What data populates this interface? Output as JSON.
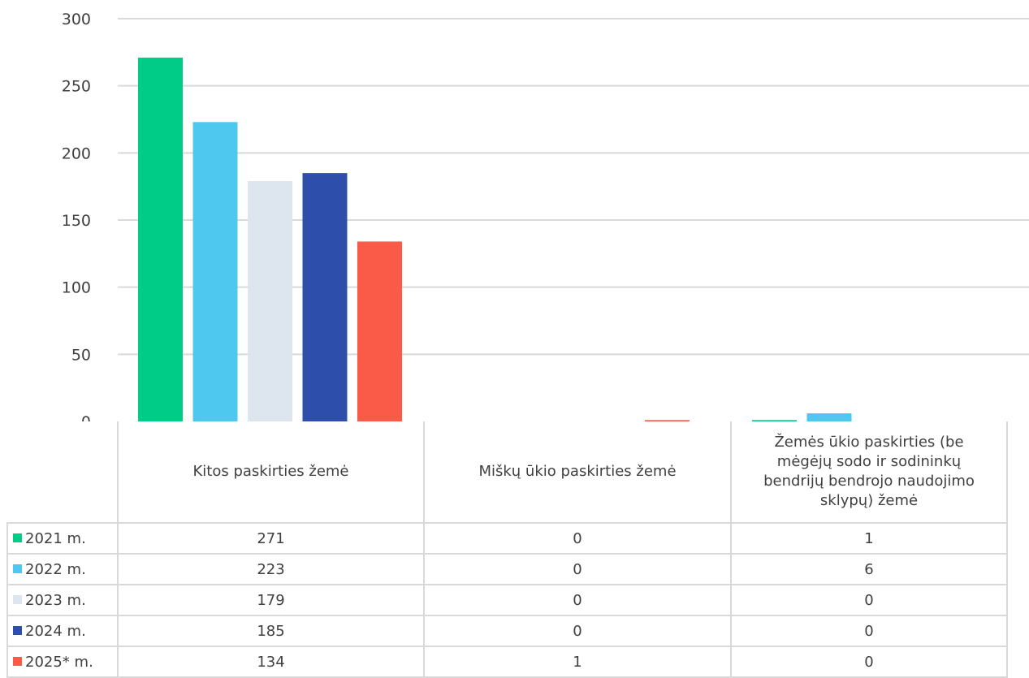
{
  "chart_data": {
    "type": "bar",
    "categories": [
      "Kitos paskirties žemė",
      "Miškų ūkio paskirties žemė",
      "Žemės ūkio paskirties (be mėgėjų sodo ir sodininkų bendrijų bendrojo naudojimo sklypų) žemė"
    ],
    "series": [
      {
        "name": "2021 m.",
        "values": [
          271,
          0,
          1
        ],
        "color": "#00cc88"
      },
      {
        "name": "2022 m.",
        "values": [
          223,
          0,
          6
        ],
        "color": "#4fc8f0"
      },
      {
        "name": "2023 m.",
        "values": [
          179,
          0,
          0
        ],
        "color": "#dde5ef"
      },
      {
        "name": "2024 m.",
        "values": [
          185,
          0,
          0
        ],
        "color": "#2e4eab"
      },
      {
        "name": "2025* m.",
        "values": [
          134,
          1,
          0
        ],
        "color": "#fa5a48"
      }
    ],
    "ylim": [
      0,
      300
    ],
    "yticks": [
      0,
      50,
      100,
      150,
      200,
      250,
      300
    ],
    "grid": true,
    "legend": "data-table"
  }
}
